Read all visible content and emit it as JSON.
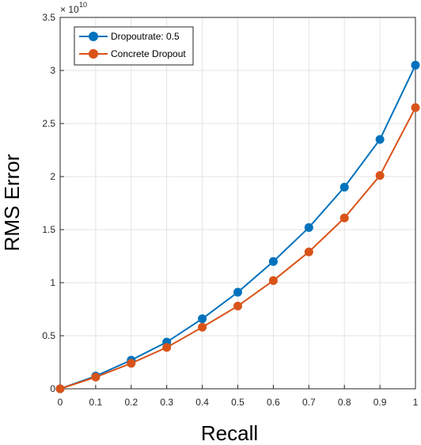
{
  "chart_data": {
    "type": "line",
    "title": "",
    "xlabel": "Recall",
    "ylabel": "RMS Error",
    "y_exponent_label": "× 10",
    "y_exponent_power": "10",
    "xlim": [
      0,
      1
    ],
    "ylim": [
      0,
      3.5
    ],
    "x_ticks": [
      "0",
      "0.1",
      "0.2",
      "0.3",
      "0.4",
      "0.5",
      "0.6",
      "0.7",
      "0.8",
      "0.9",
      "1"
    ],
    "y_ticks": [
      "0",
      "0.5",
      "1",
      "1.5",
      "2",
      "2.5",
      "3",
      "3.5"
    ],
    "grid": true,
    "legend_position": "top-left",
    "x": [
      0,
      0.1,
      0.2,
      0.3,
      0.4,
      0.5,
      0.6,
      0.7,
      0.8,
      0.9,
      1.0
    ],
    "series": [
      {
        "name": "Dropoutrate: 0.5",
        "color": "#0072BD",
        "values": [
          0,
          0.12,
          0.27,
          0.44,
          0.66,
          0.91,
          1.2,
          1.52,
          1.9,
          2.35,
          3.05
        ]
      },
      {
        "name": "Concrete Dropout",
        "color": "#D95319",
        "values": [
          0,
          0.11,
          0.24,
          0.39,
          0.58,
          0.78,
          1.02,
          1.29,
          1.61,
          2.01,
          2.65
        ]
      }
    ]
  }
}
